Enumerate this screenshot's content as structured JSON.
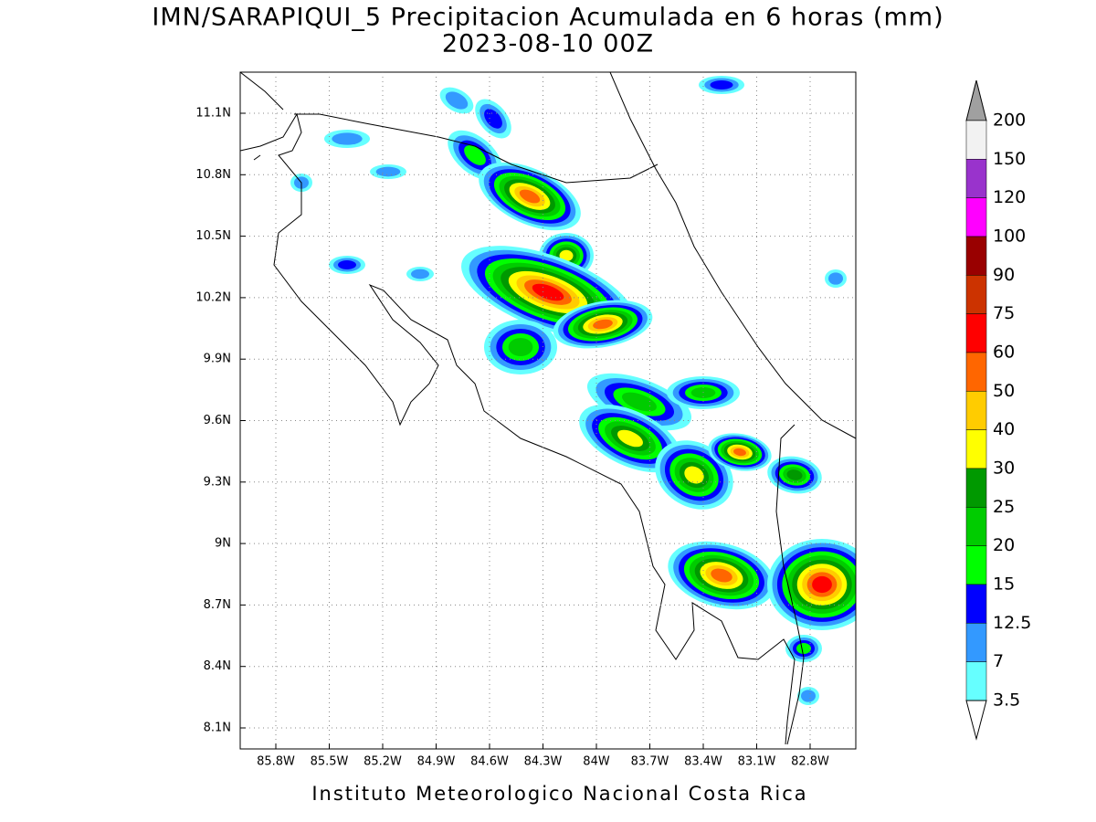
{
  "title": "IMN/SARAPIQUI_5 Precipitacion Acumulada en 6 horas (mm)",
  "subtitle": "2023-08-10 00Z",
  "map": {
    "x_ticks": [
      "85.8W",
      "85.5W",
      "85.2W",
      "84.9W",
      "84.6W",
      "84.3W",
      "84W",
      "83.7W",
      "83.4W",
      "83.1W",
      "82.8W"
    ],
    "y_ticks": [
      "11.1N",
      "10.8N",
      "10.5N",
      "10.2N",
      "9.9N",
      "9.6N",
      "9.3N",
      "9N",
      "8.7N",
      "8.4N",
      "8.1N"
    ]
  },
  "colorbar": {
    "labels": [
      "200",
      "150",
      "120",
      "100",
      "90",
      "75",
      "60",
      "50",
      "40",
      "30",
      "25",
      "20",
      "15",
      "12.5",
      "7",
      "3.5"
    ],
    "colors": [
      "#f2f2f2",
      "#9933cc",
      "#ff00ff",
      "#990000",
      "#cc3300",
      "#ff0000",
      "#ff6600",
      "#ffcc00",
      "#ffff00",
      "#009900",
      "#00cc00",
      "#00ff00",
      "#0000ff",
      "#3399ff",
      "#66ffff"
    ],
    "over_color": "#a0a0a0",
    "under_color": "#ffffff"
  },
  "footer": "Instituto Meteorologico Nacional Costa Rica"
}
